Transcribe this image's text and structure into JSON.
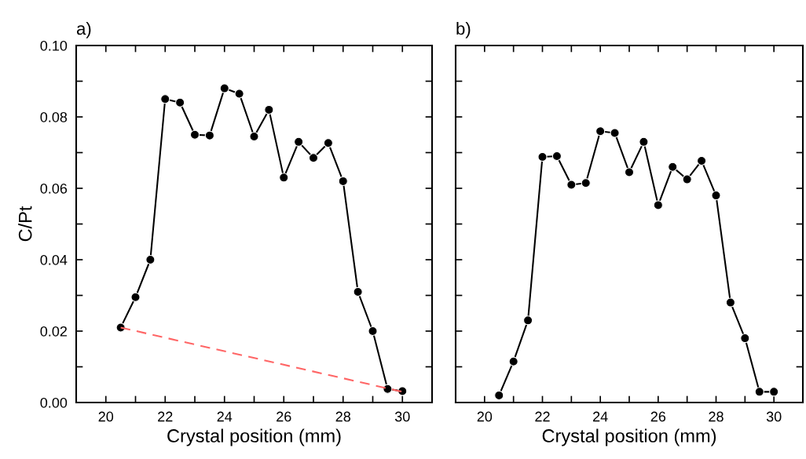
{
  "chart_data": [
    {
      "type": "line",
      "title": "a)",
      "xlabel": "Crystal position (mm)",
      "ylabel": "C/Pt",
      "xlim": [
        19,
        31
      ],
      "ylim": [
        0,
        0.1
      ],
      "xticks": [
        20,
        {
          "value": 21,
          "label": null
        },
        22,
        {
          "value": 23,
          "label": null
        },
        24,
        {
          "value": 25,
          "label": null
        },
        26,
        {
          "value": 27,
          "label": null
        },
        28,
        {
          "value": 29,
          "label": null
        },
        30
      ],
      "yticks": [
        {
          "value": 0,
          "label": "0.00"
        },
        {
          "value": 0.01,
          "label": null
        },
        {
          "value": 0.02,
          "label": "0.02"
        },
        {
          "value": 0.03,
          "label": null
        },
        {
          "value": 0.04,
          "label": "0.04"
        },
        {
          "value": 0.05,
          "label": null
        },
        {
          "value": 0.06,
          "label": "0.06"
        },
        {
          "value": 0.07,
          "label": null
        },
        {
          "value": 0.08,
          "label": "0.08"
        },
        {
          "value": 0.09,
          "label": null
        },
        {
          "value": 0.1,
          "label": "0.10"
        }
      ],
      "grid": false,
      "legend": false,
      "marker": "circle",
      "line_style": "solid",
      "x": [
        20.5,
        21,
        21.5,
        22,
        22.5,
        23,
        23.5,
        24,
        24.5,
        25,
        25.5,
        26,
        26.5,
        27,
        27.5,
        28,
        28.5,
        29,
        29.5,
        30
      ],
      "series": [
        {
          "color": "#000000",
          "values": [
            0.021,
            0.0295,
            0.04,
            0.085,
            0.084,
            0.075,
            0.0748,
            0.088,
            0.0865,
            0.0745,
            0.082,
            0.063,
            0.073,
            0.0685,
            0.0727,
            0.062,
            0.031,
            0.02,
            0.0038,
            0.0032
          ]
        },
        {
          "color": "#ff6666",
          "x": [
            20.5,
            30
          ],
          "values": [
            0.021,
            0.003
          ],
          "marker": "none",
          "line_style": "dashed"
        }
      ]
    },
    {
      "type": "line",
      "title": "b)",
      "xlabel": "Crystal position (mm)",
      "xlim": [
        19,
        31
      ],
      "ylim": [
        0,
        0.1
      ],
      "tick_labels": "x",
      "xticks": [
        20,
        {
          "value": 21,
          "label": null
        },
        22,
        {
          "value": 23,
          "label": null
        },
        24,
        {
          "value": 25,
          "label": null
        },
        26,
        {
          "value": 27,
          "label": null
        },
        28,
        {
          "value": 29,
          "label": null
        },
        30
      ],
      "yticks": [
        {
          "value": 0,
          "label": null
        },
        {
          "value": 0.01,
          "label": null
        },
        {
          "value": 0.02,
          "label": null
        },
        {
          "value": 0.03,
          "label": null
        },
        {
          "value": 0.04,
          "label": null
        },
        {
          "value": 0.05,
          "label": null
        },
        {
          "value": 0.06,
          "label": null
        },
        {
          "value": 0.07,
          "label": null
        },
        {
          "value": 0.08,
          "label": null
        },
        {
          "value": 0.09,
          "label": null
        },
        {
          "value": 0.1,
          "label": null
        }
      ],
      "grid": false,
      "legend": false,
      "marker": "circle",
      "line_style": "solid",
      "x": [
        20.5,
        21,
        21.5,
        22,
        22.5,
        23,
        23.5,
        24,
        24.5,
        25,
        25.5,
        26,
        26.5,
        27,
        27.5,
        28,
        28.5,
        29,
        29.5,
        30
      ],
      "series": [
        {
          "color": "#000000",
          "values": [
            0.002,
            0.0115,
            0.023,
            0.0688,
            0.069,
            0.061,
            0.0615,
            0.076,
            0.0755,
            0.0645,
            0.073,
            0.0553,
            0.066,
            0.0625,
            0.0677,
            0.058,
            0.028,
            0.018,
            0.003,
            0.003
          ]
        }
      ]
    }
  ]
}
